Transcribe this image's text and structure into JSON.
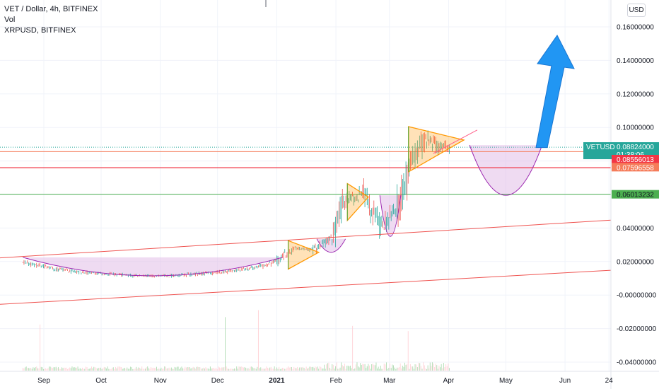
{
  "legend": {
    "symbol_line": "VET / Dollar, 4h, BITFINEX",
    "volume_label": "Vol",
    "compare_label": "XRPUSD, BITFINEX"
  },
  "scale_button": "USD",
  "colors": {
    "last_price": "#26a69a",
    "red_level": "#f23645",
    "orange_level": "#f57c5a",
    "green_level": "#4caf50",
    "cup_fill": "#e1bee7",
    "cup_stroke": "#9c27b0",
    "triangle": "#ff9800",
    "arrow": "#2196f3",
    "candle_up": "#26a69a",
    "candle_down": "#ef5350"
  },
  "price_tags": {
    "last": {
      "symbol": "VETUSD",
      "price": "0.08824000",
      "countdown": "01:38:06"
    },
    "red": "0.08556013",
    "orange": "0.07596558",
    "green": "0.06013232"
  },
  "chart_data": {
    "type": "line",
    "title": "VET / Dollar, 4h, BITFINEX",
    "xlabel": "",
    "ylabel": "",
    "ylim": [
      -0.045,
      0.17
    ],
    "grid": true,
    "y_ticks": [
      "0.16000000",
      "0.14000000",
      "0.12000000",
      "0.10000000",
      "0.08000000",
      "0.06000000",
      "0.04000000",
      "0.02000000",
      "-0.00000000",
      "-0.02000000",
      "-0.04000000"
    ],
    "x_ticks": [
      "Sep",
      "Oct",
      "Nov",
      "Dec",
      "2021",
      "Feb",
      "Mar",
      "Apr",
      "May",
      "Jun",
      "24"
    ],
    "series": [
      {
        "name": "VETUSD",
        "x": [
          "2020-08-21",
          "2020-09-05",
          "2020-09-20",
          "2020-10-05",
          "2020-10-20",
          "2020-11-05",
          "2020-11-20",
          "2020-12-05",
          "2020-12-20",
          "2021-01-01",
          "2021-01-10",
          "2021-01-20",
          "2021-01-30",
          "2021-02-05",
          "2021-02-15",
          "2021-02-25",
          "2021-03-05",
          "2021-03-12",
          "2021-03-20",
          "2021-03-27",
          "2021-04-02"
        ],
        "y": [
          0.0195,
          0.016,
          0.0135,
          0.0125,
          0.0115,
          0.0115,
          0.0125,
          0.014,
          0.016,
          0.02,
          0.028,
          0.027,
          0.034,
          0.055,
          0.06,
          0.042,
          0.052,
          0.08,
          0.093,
          0.088,
          0.0882
        ]
      }
    ],
    "horizontal_levels": [
      0.08824,
      0.08556013,
      0.07596558,
      0.06013232
    ]
  }
}
